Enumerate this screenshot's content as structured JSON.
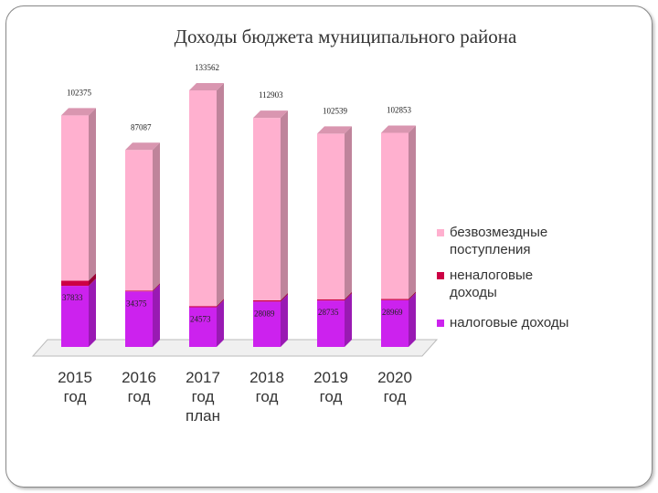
{
  "chart_data": {
    "type": "bar",
    "stacked": true,
    "title": "Доходы бюджета муниципального района",
    "categories": [
      "2015 год",
      "2016 год",
      "2017 год план",
      "2018 год",
      "2019 год",
      "2020 год"
    ],
    "series": [
      {
        "name": "налоговые доходы",
        "color": "#cc22ee",
        "values": [
          37833,
          34375,
          24573,
          28089,
          28735,
          28969
        ]
      },
      {
        "name": "неналоговые доходы",
        "color": "#cc0044",
        "values": [
          3195,
          521,
          731,
          827,
          777,
          789
        ]
      },
      {
        "name": "безвозмездные поступления",
        "color": "#ffb0cf",
        "values": [
          102375,
          87087,
          133562,
          112903,
          102539,
          102853
        ]
      }
    ],
    "ylim": [
      0,
      160000
    ]
  }
}
